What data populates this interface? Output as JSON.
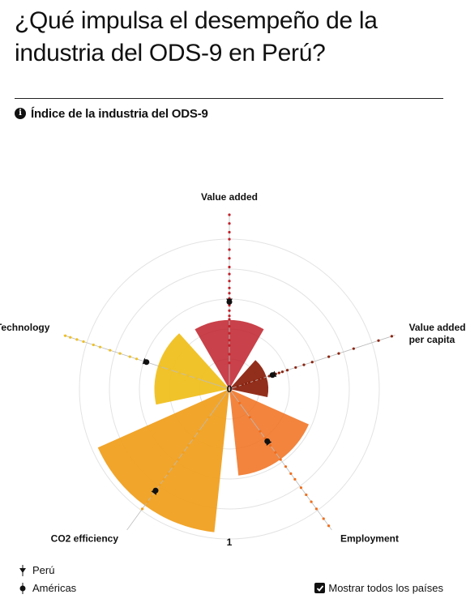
{
  "header": {
    "title": "¿Qué impulsa el desempeño de la industria del ODS-9 en Perú?",
    "subtitle": "Índice de la industria del ODS-9"
  },
  "icons": {
    "info": "info-icon",
    "checkbox": "checkbox-checked-icon"
  },
  "legend": {
    "peru": "Perú",
    "americas": "Américas"
  },
  "toggle": {
    "label": "Mostrar todos los países",
    "checked": true
  },
  "chart_data": {
    "type": "polar-bar",
    "center_label": "0",
    "outer_label": "1",
    "range": [
      0,
      1
    ],
    "grid": true,
    "dimensions": [
      {
        "key": "value_added",
        "label": "Value added",
        "label_lines": [
          "Value added"
        ],
        "value": 0.46,
        "peru": 0.5,
        "americas": 0.5,
        "color": "#c0202a",
        "opacity": 0.85,
        "countries": [
          0.15,
          0.2,
          0.25,
          0.28,
          0.32,
          0.36,
          0.4,
          0.42,
          0.45,
          0.48,
          0.52,
          0.55,
          0.58,
          0.62,
          0.66,
          0.7,
          0.75,
          0.8,
          0.86,
          0.9,
          0.95,
          1.0
        ]
      },
      {
        "key": "value_added_per_capita",
        "label": "Value added per capita",
        "label_lines": [
          "Value added",
          "per capita"
        ],
        "value": 0.26,
        "peru": 0.26,
        "americas": 0.26,
        "color": "#8c2410",
        "opacity": 0.95,
        "countries": [
          0.05,
          0.08,
          0.1,
          0.12,
          0.15,
          0.18,
          0.2,
          0.24,
          0.28,
          0.3,
          0.32,
          0.35,
          0.4,
          0.45,
          0.5,
          0.6,
          0.66,
          0.75,
          0.9,
          0.98
        ]
      },
      {
        "key": "employment",
        "label": "Employment",
        "label_lines": [
          "Employment"
        ],
        "value": 0.58,
        "peru": 0.37,
        "americas": 0.37,
        "color": "#f06e1c",
        "opacity": 0.85,
        "countries": [
          0.1,
          0.2,
          0.3,
          0.35,
          0.4,
          0.45,
          0.5,
          0.55,
          0.6,
          0.64,
          0.7,
          0.75,
          0.8,
          0.85,
          0.92,
          0.97
        ]
      },
      {
        "key": "co2_efficiency",
        "label": "CO2 efficiency",
        "label_lines": [
          "CO2 efficiency"
        ],
        "value": 0.96,
        "peru": 0.72,
        "americas": 0.72,
        "color": "#f0a020",
        "opacity": 0.95,
        "countries": [
          0.2,
          0.3,
          0.35,
          0.4,
          0.45,
          0.5,
          0.55,
          0.6,
          0.64,
          0.68,
          0.72,
          0.76,
          0.8,
          0.85
        ]
      },
      {
        "key": "technology",
        "label": "Technology",
        "label_lines": [
          "Technology"
        ],
        "value": 0.5,
        "peru": 0.5,
        "americas": 0.5,
        "color": "#f0c020",
        "opacity": 0.95,
        "countries": [
          0.2,
          0.25,
          0.3,
          0.36,
          0.42,
          0.5,
          0.56,
          0.6,
          0.66,
          0.72,
          0.78,
          0.82,
          0.88,
          0.92,
          0.96,
          0.99
        ]
      }
    ]
  }
}
